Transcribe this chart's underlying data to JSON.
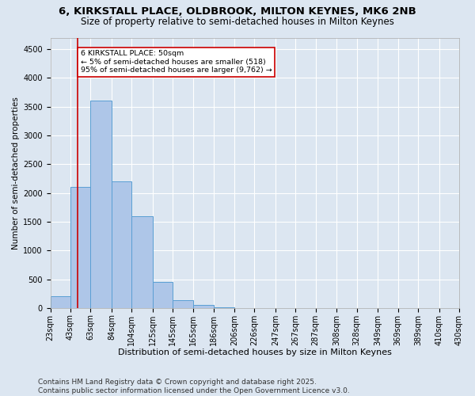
{
  "title1": "6, KIRKSTALL PLACE, OLDBROOK, MILTON KEYNES, MK6 2NB",
  "title2": "Size of property relative to semi-detached houses in Milton Keynes",
  "xlabel": "Distribution of semi-detached houses by size in Milton Keynes",
  "ylabel": "Number of semi-detached properties",
  "bins": [
    "23sqm",
    "43sqm",
    "63sqm",
    "84sqm",
    "104sqm",
    "125sqm",
    "145sqm",
    "165sqm",
    "186sqm",
    "206sqm",
    "226sqm",
    "247sqm",
    "267sqm",
    "287sqm",
    "308sqm",
    "328sqm",
    "349sqm",
    "369sqm",
    "389sqm",
    "410sqm",
    "430sqm"
  ],
  "bin_edges": [
    23,
    43,
    63,
    84,
    104,
    125,
    145,
    165,
    186,
    206,
    226,
    247,
    267,
    287,
    308,
    328,
    349,
    369,
    389,
    410,
    430
  ],
  "values": [
    200,
    2100,
    3600,
    2200,
    1600,
    450,
    130,
    50,
    5,
    2,
    1,
    1,
    0,
    0,
    0,
    0,
    0,
    0,
    0,
    0
  ],
  "bar_color": "#aec6e8",
  "bar_edge_color": "#5a9fd4",
  "property_size": 50,
  "property_line_color": "#cc0000",
  "annotation_text": "6 KIRKSTALL PLACE: 50sqm\n← 5% of semi-detached houses are smaller (518)\n95% of semi-detached houses are larger (9,762) →",
  "annotation_box_color": "#ffffff",
  "annotation_box_edge_color": "#cc0000",
  "ylim": [
    0,
    4700
  ],
  "yticks": [
    0,
    500,
    1000,
    1500,
    2000,
    2500,
    3000,
    3500,
    4000,
    4500
  ],
  "background_color": "#dce6f1",
  "grid_color": "#ffffff",
  "footer": "Contains HM Land Registry data © Crown copyright and database right 2025.\nContains public sector information licensed under the Open Government Licence v3.0.",
  "title1_fontsize": 9.5,
  "title2_fontsize": 8.5,
  "xlabel_fontsize": 8,
  "ylabel_fontsize": 7.5,
  "tick_fontsize": 7,
  "footer_fontsize": 6.5
}
